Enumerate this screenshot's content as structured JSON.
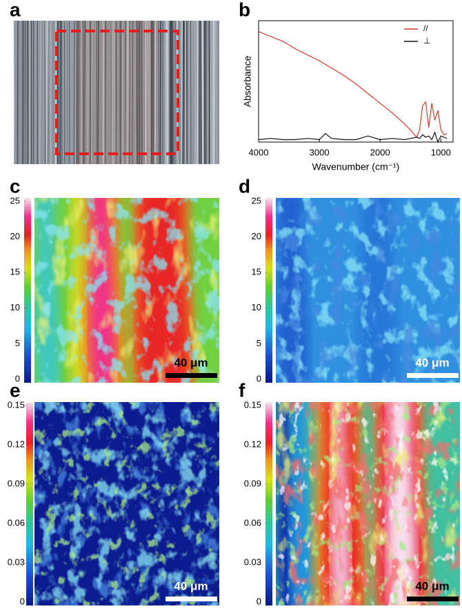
{
  "panel_labels": [
    "a",
    "b",
    "c",
    "d",
    "e",
    "f"
  ],
  "chart_data": {
    "type": "line",
    "x_label": "Wavenumber (cm⁻¹)",
    "y_label": "Absorbance",
    "xlim": [
      4000,
      800
    ],
    "ylim": [
      0,
      1
    ],
    "xticks": [
      4000,
      3000,
      2000,
      1000
    ],
    "legend": "upper right",
    "x": [
      4000,
      3800,
      3600,
      3400,
      3200,
      3000,
      2900,
      2800,
      2600,
      2400,
      2200,
      2000,
      1800,
      1600,
      1500,
      1400,
      1350,
      1300,
      1250,
      1200,
      1150,
      1100,
      1050,
      1000,
      950,
      900
    ],
    "series": [
      {
        "name": "//",
        "color": "#d03a2a",
        "values": [
          0.91,
          0.87,
          0.83,
          0.77,
          0.72,
          0.67,
          0.64,
          0.61,
          0.55,
          0.48,
          0.4,
          0.32,
          0.24,
          0.15,
          0.1,
          0.04,
          0.1,
          0.3,
          0.33,
          0.12,
          0.32,
          0.18,
          0.26,
          0.1,
          0.06,
          0.07
        ]
      },
      {
        "name": "⊥",
        "color": "#111111",
        "values": [
          0.02,
          0.03,
          0.02,
          0.02,
          0.03,
          0.02,
          0.07,
          0.03,
          0.02,
          0.02,
          0.05,
          0.02,
          0.03,
          0.02,
          0.03,
          0.04,
          0.03,
          0.06,
          0.04,
          0.05,
          0.02,
          0.08,
          0.0,
          0.05,
          0.04,
          0.03
        ]
      }
    ]
  },
  "maps": [
    {
      "lim": [
        0,
        25
      ],
      "ticks": [
        0,
        5,
        10,
        15,
        20,
        25
      ],
      "scale_bar_label": "40 μm"
    },
    {
      "lim": [
        0,
        25
      ],
      "ticks": [
        0,
        5,
        10,
        15,
        20,
        25
      ],
      "scale_bar_label": "40 μm"
    },
    {
      "lim": [
        0,
        0.15
      ],
      "ticks": [
        0,
        0.03,
        0.06,
        0.09,
        0.12,
        0.15
      ],
      "scale_bar_label": "40 μm"
    },
    {
      "lim": [
        0,
        0.15
      ],
      "ticks": [
        0,
        0.03,
        0.06,
        0.09,
        0.12,
        0.15
      ],
      "scale_bar_label": "40 μm"
    }
  ]
}
